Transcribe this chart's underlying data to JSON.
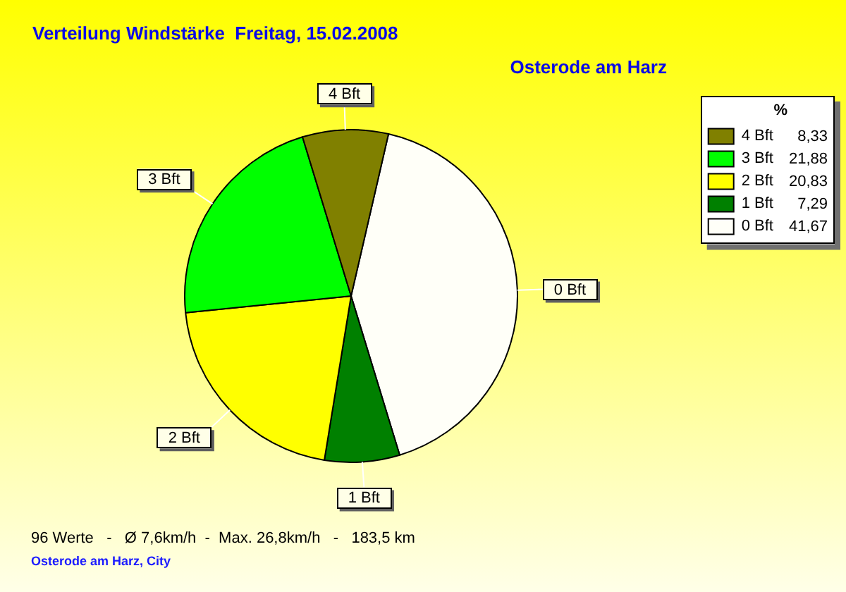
{
  "chart_data": {
    "type": "pie",
    "title": "Verteilung Windstärke  Freitag, 15.02.2008",
    "subtitle": "Osterode am Harz",
    "categories": [
      "0 Bft",
      "1 Bft",
      "2 Bft",
      "3 Bft",
      "4 Bft"
    ],
    "values": [
      41.67,
      7.29,
      20.83,
      21.88,
      8.33
    ],
    "value_labels": [
      "41,67",
      "7,29",
      "20,83",
      "21,88",
      "8,33"
    ],
    "colors": [
      "#fffff8",
      "#008000",
      "#ffff00",
      "#00ff00",
      "#808000"
    ],
    "legend": "top right",
    "legend_title": "%",
    "annotations": [
      "96 Werte   -   Ø 7,6km/h  -  Max. 26,8km/h   -   183,5 km",
      "Osterode am Harz, City"
    ]
  }
}
